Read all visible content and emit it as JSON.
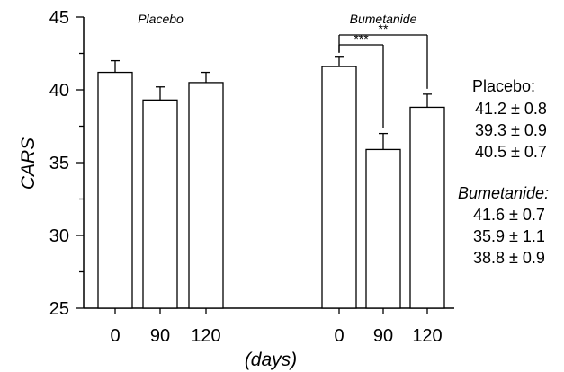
{
  "chart_data": {
    "type": "bar",
    "xlabel": "(days)",
    "ylabel": "CARS",
    "ylim": [
      25,
      45
    ],
    "yticks": [
      25,
      30,
      35,
      40,
      45
    ],
    "groups": [
      {
        "name": "Placebo",
        "categories": [
          "0",
          "90",
          "120"
        ],
        "values": [
          41.2,
          39.3,
          40.5
        ],
        "errors": [
          0.8,
          0.9,
          0.7
        ]
      },
      {
        "name": "Bumetanide",
        "categories": [
          "0",
          "90",
          "120"
        ],
        "values": [
          41.6,
          35.9,
          38.8
        ],
        "errors": [
          0.7,
          1.1,
          0.9
        ]
      }
    ],
    "significance": [
      {
        "group": 1,
        "from": 0,
        "to": 1,
        "label": "***"
      },
      {
        "group": 1,
        "from": 0,
        "to": 2,
        "label": "**"
      }
    ],
    "annotations": [
      {
        "title": "Placebo:",
        "lines": [
          "41.2 ± 0.8",
          "39.3 ± 0.9",
          "40.5 ± 0.7"
        ]
      },
      {
        "title": "Bumetanide:",
        "lines": [
          "41.6 ± 0.7",
          "35.9 ± 1.1",
          "38.8 ± 0.9"
        ]
      }
    ],
    "grid": false,
    "bar_fill": "#ffffff",
    "stroke": "#000000"
  }
}
